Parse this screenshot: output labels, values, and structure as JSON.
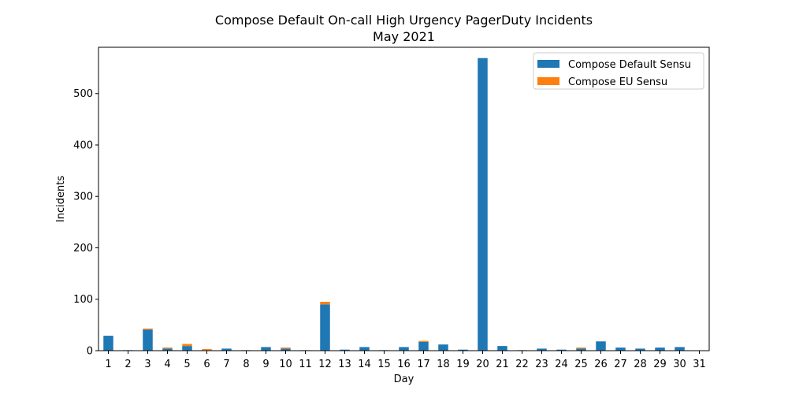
{
  "chart_data": {
    "type": "bar",
    "stacked": true,
    "title": "Compose Default On-call High Urgency PagerDuty Incidents",
    "subtitle": "May 2021",
    "xlabel": "Day",
    "ylabel": "Incidents",
    "ylim": [
      0,
      590
    ],
    "yticks": [
      0,
      100,
      200,
      300,
      400,
      500
    ],
    "categories": [
      "1",
      "2",
      "3",
      "4",
      "5",
      "6",
      "7",
      "8",
      "9",
      "10",
      "11",
      "12",
      "13",
      "14",
      "15",
      "16",
      "17",
      "18",
      "19",
      "20",
      "21",
      "22",
      "23",
      "24",
      "25",
      "26",
      "27",
      "28",
      "29",
      "30",
      "31"
    ],
    "series": [
      {
        "name": "Compose Default Sensu",
        "color": "#1f77b4",
        "values": [
          29,
          1,
          41,
          4,
          9,
          1,
          4,
          1,
          7,
          4,
          1,
          90,
          2,
          7,
          1,
          7,
          17,
          12,
          2,
          569,
          9,
          1,
          4,
          2,
          4,
          18,
          6,
          4,
          6,
          7,
          0
        ]
      },
      {
        "name": "Compose EU Sensu",
        "color": "#ff7f0e",
        "values": [
          0,
          0,
          2,
          2,
          4,
          2,
          0,
          0,
          0,
          2,
          0,
          5,
          0,
          0,
          0,
          0,
          2,
          0,
          0,
          0,
          0,
          0,
          0,
          0,
          2,
          0,
          0,
          0,
          0,
          0,
          0
        ]
      }
    ],
    "legend_position": "top-right",
    "grid": false
  }
}
